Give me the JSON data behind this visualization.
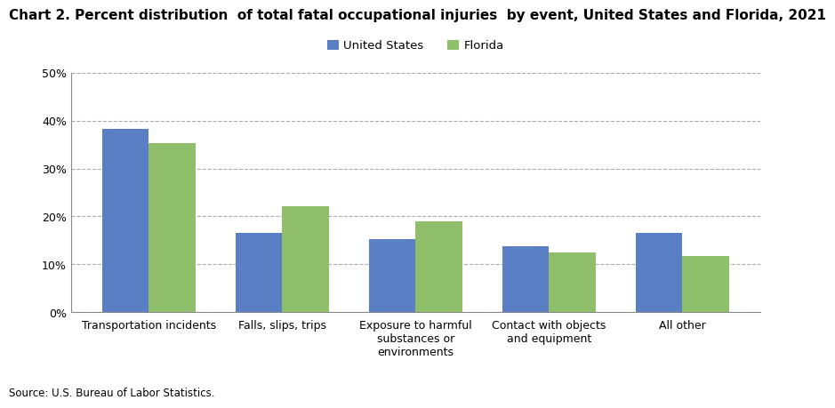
{
  "title": "Chart 2. Percent distribution  of total fatal occupational injuries  by event, United States and Florida, 2021",
  "categories": [
    "Transportation incidents",
    "Falls, slips, trips",
    "Exposure to harmful\nsubstances or\nenvironments",
    "Contact with objects\nand equipment",
    "All other"
  ],
  "us_values": [
    38.3,
    16.5,
    15.3,
    13.7,
    16.5
  ],
  "fl_values": [
    35.3,
    22.1,
    19.0,
    12.5,
    11.8
  ],
  "us_color": "#5b7fc4",
  "fl_color": "#8fbf6a",
  "legend_labels": [
    "United States",
    "Florida"
  ],
  "ylim": [
    0,
    50
  ],
  "yticks": [
    0,
    10,
    20,
    30,
    40,
    50
  ],
  "source": "Source: U.S. Bureau of Labor Statistics.",
  "background_color": "#ffffff",
  "grid_color": "#aaaaaa",
  "title_fontsize": 11.0,
  "tick_fontsize": 9.0,
  "legend_fontsize": 9.5
}
